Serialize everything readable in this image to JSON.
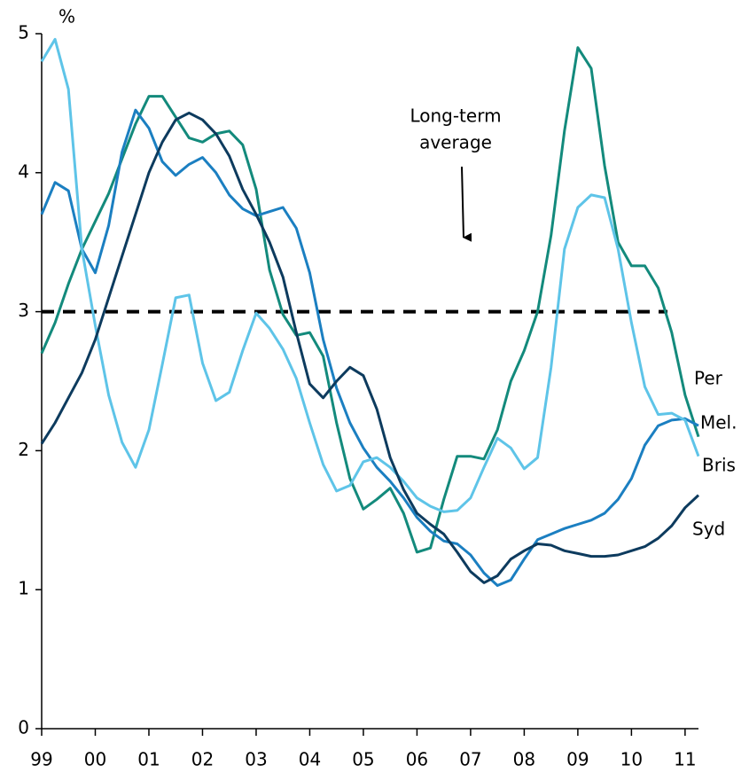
{
  "chart_data": {
    "type": "line",
    "y_unit_label": "%",
    "annotation": [
      "Long-term",
      "average"
    ],
    "reference_line": {
      "value": 3,
      "style": "dashed",
      "color": "#000000"
    },
    "x": [
      1999,
      1999.25,
      1999.5,
      1999.75,
      2000,
      2000.25,
      2000.5,
      2000.75,
      2001,
      2001.25,
      2001.5,
      2001.75,
      2002,
      2002.25,
      2002.5,
      2002.75,
      2003,
      2003.25,
      2003.5,
      2003.75,
      2004,
      2004.25,
      2004.5,
      2004.75,
      2005,
      2005.25,
      2005.5,
      2005.75,
      2006,
      2006.25,
      2006.5,
      2006.75,
      2007,
      2007.25,
      2007.5,
      2007.75,
      2008,
      2008.25,
      2008.5,
      2008.75,
      2009,
      2009.25,
      2009.5,
      2009.75,
      2010,
      2010.25,
      2010.5,
      2010.75,
      2011,
      2011.25
    ],
    "series": [
      {
        "name": "Per",
        "color": "#138a7c",
        "values": [
          2.7,
          2.92,
          3.2,
          3.45,
          3.65,
          3.85,
          4.1,
          4.35,
          4.55,
          4.55,
          4.4,
          4.25,
          4.22,
          4.28,
          4.3,
          4.2,
          3.88,
          3.3,
          2.98,
          2.83,
          2.85,
          2.68,
          2.2,
          1.8,
          1.58,
          1.65,
          1.73,
          1.55,
          1.27,
          1.3,
          1.65,
          1.96,
          1.96,
          1.94,
          2.15,
          2.5,
          2.72,
          3.0,
          3.55,
          4.3,
          4.9,
          4.75,
          4.05,
          3.5,
          3.33,
          3.33,
          3.17,
          2.85,
          2.4,
          2.1
        ]
      },
      {
        "name": "Mel.",
        "color": "#1b7fc1",
        "values": [
          3.7,
          3.93,
          3.87,
          3.45,
          3.28,
          3.62,
          4.15,
          4.45,
          4.32,
          4.08,
          3.98,
          4.06,
          4.11,
          4.0,
          3.84,
          3.74,
          3.69,
          3.72,
          3.75,
          3.6,
          3.28,
          2.8,
          2.45,
          2.2,
          2.02,
          1.88,
          1.78,
          1.66,
          1.52,
          1.42,
          1.35,
          1.33,
          1.25,
          1.12,
          1.03,
          1.07,
          1.22,
          1.36,
          1.4,
          1.44,
          1.47,
          1.5,
          1.55,
          1.65,
          1.8,
          2.04,
          2.18,
          2.22,
          2.23,
          2.18
        ]
      },
      {
        "name": "Bris",
        "color": "#5ec4e8",
        "values": [
          4.8,
          4.96,
          4.6,
          3.45,
          2.9,
          2.4,
          2.06,
          1.88,
          2.15,
          2.62,
          3.1,
          3.12,
          2.63,
          2.36,
          2.42,
          2.72,
          2.99,
          2.88,
          2.73,
          2.52,
          2.2,
          1.9,
          1.71,
          1.75,
          1.92,
          1.95,
          1.88,
          1.78,
          1.66,
          1.6,
          1.56,
          1.57,
          1.66,
          1.88,
          2.09,
          2.02,
          1.87,
          1.95,
          2.6,
          3.45,
          3.75,
          3.84,
          3.82,
          3.45,
          2.92,
          2.46,
          2.26,
          2.27,
          2.22,
          1.96
        ]
      },
      {
        "name": "Syd",
        "color": "#0d3b5e",
        "values": [
          2.05,
          2.2,
          2.38,
          2.56,
          2.8,
          3.1,
          3.4,
          3.7,
          4.0,
          4.22,
          4.38,
          4.43,
          4.38,
          4.28,
          4.12,
          3.88,
          3.7,
          3.5,
          3.25,
          2.85,
          2.48,
          2.38,
          2.5,
          2.6,
          2.54,
          2.3,
          1.95,
          1.72,
          1.55,
          1.47,
          1.4,
          1.27,
          1.13,
          1.05,
          1.1,
          1.22,
          1.28,
          1.33,
          1.32,
          1.28,
          1.26,
          1.24,
          1.24,
          1.25,
          1.28,
          1.31,
          1.37,
          1.46,
          1.59,
          1.68
        ]
      }
    ],
    "xlim": [
      1999,
      2011.25
    ],
    "xticks": [
      {
        "value": 1999,
        "label": "99"
      },
      {
        "value": 2000,
        "label": "00"
      },
      {
        "value": 2001,
        "label": "01"
      },
      {
        "value": 2002,
        "label": "02"
      },
      {
        "value": 2003,
        "label": "03"
      },
      {
        "value": 2004,
        "label": "04"
      },
      {
        "value": 2005,
        "label": "05"
      },
      {
        "value": 2006,
        "label": "06"
      },
      {
        "value": 2007,
        "label": "07"
      },
      {
        "value": 2008,
        "label": "08"
      },
      {
        "value": 2009,
        "label": "09"
      },
      {
        "value": 2010,
        "label": "10"
      },
      {
        "value": 2011,
        "label": "11"
      }
    ],
    "ylim": [
      0,
      5
    ],
    "yticks": [
      0,
      1,
      2,
      3,
      4,
      5
    ],
    "grid": false
  }
}
